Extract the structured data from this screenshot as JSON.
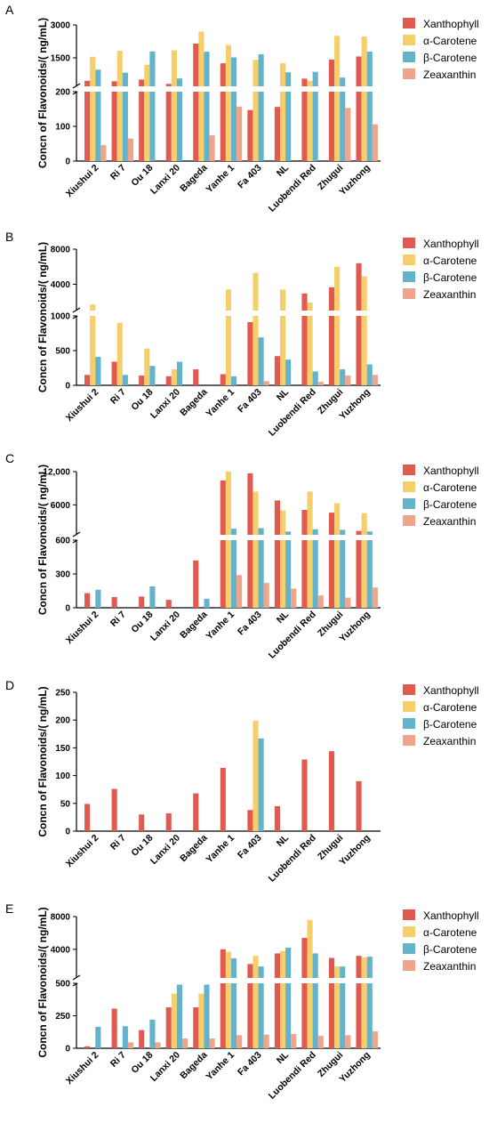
{
  "figure": {
    "y_axis_label": "Concn of Flavonoids/( ng/mL)",
    "series_names": [
      "Xanthophyll",
      "α-Carotene",
      "β-Carotene",
      "Zeaxanthin"
    ],
    "series_colors": [
      "#e05a4f",
      "#f6cf6a",
      "#64b3cc",
      "#f0a58a"
    ],
    "categories": [
      "Xiushui 2",
      "Ri 7",
      "Ou 18",
      "Lanxi 20",
      "Bageda",
      "Yanhe 1",
      "Fa 403",
      "NL",
      "Luobendi Red",
      "Zhugui",
      "Yuzhong"
    ]
  },
  "chart_data": [
    {
      "panel": "A",
      "type": "bar",
      "ylabel": "Concn of Flavonoids/( ng/mL)",
      "y_axis_break": true,
      "lower_ylim": [
        0,
        200
      ],
      "lower_ticks": [
        "0",
        "100",
        "200"
      ],
      "upper_ylim": [
        200,
        3000
      ],
      "upper_ticks": [
        "1500",
        "3000"
      ],
      "categories": [
        "Xiushui 2",
        "Ri 7",
        "Ou 18",
        "Lanxi 20",
        "Bageda",
        "Yanhe 1",
        "Fa 403",
        "NL",
        "Luobendi Red",
        "Zhugui",
        "Yuzhong"
      ],
      "series": [
        {
          "name": "Xanthophyll",
          "values": [
            450,
            430,
            510,
            310,
            2150,
            1250,
            147,
            156,
            550,
            1420,
            1560
          ]
        },
        {
          "name": "α-Carotene",
          "values": [
            1550,
            1820,
            1180,
            1840,
            2700,
            2090,
            1410,
            1250,
            450,
            2500,
            2470
          ]
        },
        {
          "name": "β-Carotene",
          "values": [
            960,
            820,
            1790,
            560,
            1780,
            1520,
            1660,
            840,
            860,
            600,
            1780
          ]
        },
        {
          "name": "Zeaxanthin",
          "values": [
            46,
            65,
            0,
            0,
            74,
            157,
            0,
            0,
            0,
            153,
            106
          ]
        }
      ]
    },
    {
      "panel": "B",
      "type": "bar",
      "ylabel": "Concn of Flavonoids/( ng/mL)",
      "y_axis_break": true,
      "lower_ylim": [
        0,
        1000
      ],
      "lower_ticks": [
        "0",
        "500",
        "1000"
      ],
      "upper_ylim": [
        1000,
        8000
      ],
      "upper_ticks": [
        "4000",
        "8000"
      ],
      "categories": [
        "Xiushui 2",
        "Ri 7",
        "Ou 18",
        "Lanxi 20",
        "Bageda",
        "Yanhe 1",
        "Fa 403",
        "NL",
        "Luobendi Red",
        "Zhugui",
        "Yuzhong"
      ],
      "series": [
        {
          "name": "Xanthophyll",
          "values": [
            150,
            340,
            140,
            130,
            230,
            160,
            910,
            420,
            2950,
            3650,
            6400
          ]
        },
        {
          "name": "α-Carotene",
          "values": [
            1700,
            900,
            530,
            230,
            0,
            3400,
            5300,
            3400,
            1900,
            6000,
            4900
          ]
        },
        {
          "name": "β-Carotene",
          "values": [
            410,
            150,
            280,
            340,
            0,
            130,
            690,
            370,
            200,
            230,
            300
          ]
        },
        {
          "name": "Zeaxanthin",
          "values": [
            0,
            0,
            0,
            0,
            0,
            0,
            60,
            0,
            50,
            140,
            150
          ]
        }
      ]
    },
    {
      "panel": "C",
      "type": "bar",
      "ylabel": "Concn of Flavonoids/( ng/mL)",
      "y_axis_break": true,
      "lower_ylim": [
        0,
        600
      ],
      "lower_ticks": [
        "0",
        "300",
        "600"
      ],
      "upper_ylim": [
        600,
        12000
      ],
      "upper_ticks": [
        "6000",
        "12,000"
      ],
      "categories": [
        "Xiushui 2",
        "Ri 7",
        "Ou 18",
        "Lanxi 20",
        "Bageda",
        "Yanhe 1",
        "Fa 403",
        "NL",
        "Luobendi Red",
        "Zhugui",
        "Yuzhong"
      ],
      "series": [
        {
          "name": "Xanthophyll",
          "values": [
            130,
            95,
            100,
            70,
            420,
            10400,
            11700,
            6800,
            5100,
            4600,
            1300
          ]
        },
        {
          "name": "α-Carotene",
          "values": [
            0,
            0,
            0,
            0,
            0,
            12000,
            8400,
            5000,
            8400,
            6300,
            4500
          ]
        },
        {
          "name": "β-Carotene",
          "values": [
            160,
            0,
            190,
            0,
            80,
            1700,
            1800,
            1200,
            1600,
            1500,
            1200
          ]
        },
        {
          "name": "Zeaxanthin",
          "values": [
            0,
            0,
            0,
            0,
            0,
            290,
            220,
            170,
            110,
            90,
            180
          ]
        }
      ]
    },
    {
      "panel": "D",
      "type": "bar",
      "ylabel": "Concn of Flavonoids/( ng/mL)",
      "y_axis_break": false,
      "ylim": [
        0,
        250
      ],
      "ticks": [
        "0",
        "50",
        "100",
        "150",
        "200",
        "250"
      ],
      "categories": [
        "Xiushui 2",
        "Ri 7",
        "Ou 18",
        "Lanxi 20",
        "Bageda",
        "Yanhe 1",
        "Fa 403",
        "NL",
        "Luobendi Red",
        "Zhugui",
        "Yuzhong"
      ],
      "series": [
        {
          "name": "Xanthophyll",
          "values": [
            49,
            76,
            30,
            32,
            68,
            114,
            38,
            45,
            129,
            144,
            90
          ]
        },
        {
          "name": "α-Carotene",
          "values": [
            0,
            0,
            0,
            0,
            0,
            0,
            199,
            0,
            0,
            0,
            0
          ]
        },
        {
          "name": "β-Carotene",
          "values": [
            0,
            0,
            0,
            0,
            0,
            0,
            167,
            0,
            0,
            0,
            0
          ]
        },
        {
          "name": "Zeaxanthin",
          "values": [
            0,
            0,
            0,
            0,
            0,
            0,
            0,
            0,
            0,
            0,
            0
          ]
        }
      ]
    },
    {
      "panel": "E",
      "type": "bar",
      "ylabel": "Concn of Flavonoids/( ng/mL)",
      "y_axis_break": true,
      "lower_ylim": [
        0,
        500
      ],
      "lower_ticks": [
        "0",
        "250",
        "500"
      ],
      "upper_ylim": [
        500,
        8000
      ],
      "upper_ticks": [
        "4000",
        "8000"
      ],
      "categories": [
        "Xiushui 2",
        "Ri 7",
        "Ou 18",
        "Lanxi 20",
        "Bageda",
        "Yanhe 1",
        "Fa 403",
        "NL",
        "Luobendi Red",
        "Zhugui",
        "Yuzhong"
      ],
      "series": [
        {
          "name": "Xanthophyll",
          "values": [
            15,
            305,
            140,
            315,
            315,
            4000,
            2200,
            3500,
            5400,
            2950,
            3200
          ]
        },
        {
          "name": "α-Carotene",
          "values": [
            0,
            0,
            0,
            420,
            420,
            3700,
            3200,
            3800,
            7600,
            1900,
            3000
          ]
        },
        {
          "name": "β-Carotene",
          "values": [
            165,
            170,
            220,
            490,
            490,
            2900,
            1900,
            4200,
            3500,
            1900,
            3100
          ]
        },
        {
          "name": "Zeaxanthin",
          "values": [
            0,
            45,
            45,
            75,
            75,
            100,
            105,
            110,
            95,
            100,
            130
          ]
        }
      ]
    }
  ]
}
